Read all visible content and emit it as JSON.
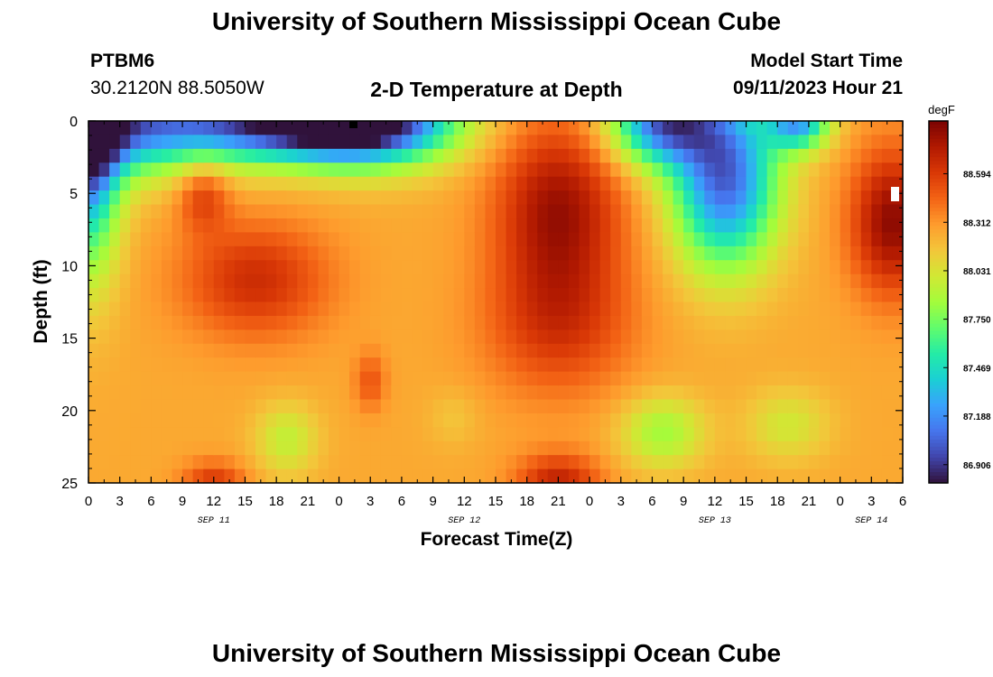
{
  "header": {
    "title_top": "University of Southern Mississippi Ocean Cube",
    "title_bottom": "University of Southern Mississippi Ocean Cube",
    "station": "PTBM6",
    "coords": "30.2120N  88.5050W",
    "model_start_label": "Model Start Time",
    "model_start_value": "09/11/2023 Hour 21"
  },
  "colors": {
    "colormap": [
      "#30123b",
      "#4145ab",
      "#4675ed",
      "#39a2fc",
      "#1bcfd4",
      "#24eca6",
      "#61fc6c",
      "#a4fc3b",
      "#d1e834",
      "#f3c63a",
      "#fe9b2d",
      "#f36315",
      "#d93806",
      "#b11901",
      "#7a0402"
    ]
  },
  "chart_data": {
    "type": "heatmap",
    "title": "2-D Temperature at Depth",
    "xlabel": "Forecast Time(Z)",
    "ylabel": "Depth (ft)",
    "colorbar_unit": "degF",
    "x_range_hours_from_sep11_00z": [
      0,
      78
    ],
    "x_tick_labels": [
      "0",
      "3",
      "6",
      "9",
      "12",
      "15",
      "18",
      "21",
      "0",
      "3",
      "6",
      "9",
      "12",
      "15",
      "18",
      "21",
      "0",
      "3",
      "6",
      "9",
      "12",
      "15",
      "18",
      "21",
      "0",
      "3",
      "6"
    ],
    "x_date_labels": [
      {
        "label": "SEP 11",
        "at_tick": "12"
      },
      {
        "label": "SEP 12",
        "at_tick": "12"
      },
      {
        "label": "SEP 13",
        "at_tick": "12"
      },
      {
        "label": "SEP 14",
        "at_tick": "3"
      }
    ],
    "y_tick_labels": [
      "0",
      "5",
      "10",
      "15",
      "20",
      "25"
    ],
    "y_range": [
      0,
      25
    ],
    "y_inverted": true,
    "colorbar_tick_labels": [
      "88.594",
      "88.312",
      "88.031",
      "87.750",
      "87.469",
      "87.188",
      "86.906"
    ],
    "colorbar_range": [
      86.8,
      88.9
    ],
    "grid": false,
    "temperature_features": [
      {
        "kind": "cool",
        "t": 0,
        "d": 0,
        "value": 86.95,
        "st": 14,
        "sd": 3.5
      },
      {
        "kind": "cool",
        "t": 20,
        "d": 0,
        "value": 87.1,
        "st": 10,
        "sd": 2.5
      },
      {
        "kind": "cool",
        "t": 27,
        "d": 0,
        "value": 87.05,
        "st": 8,
        "sd": 3
      },
      {
        "kind": "cool",
        "t": 0,
        "d": 2,
        "value": 87.15,
        "st": 3,
        "sd": 8
      },
      {
        "kind": "warm",
        "t": 16,
        "d": 11,
        "value": 88.65,
        "st": 7,
        "sd": 4
      },
      {
        "kind": "warm",
        "t": 11,
        "d": 5,
        "value": 88.6,
        "st": 2.5,
        "sd": 2.5
      },
      {
        "kind": "warm",
        "t": 45,
        "d": 6,
        "value": 88.8,
        "st": 6,
        "sd": 6
      },
      {
        "kind": "warm",
        "t": 45,
        "d": 14,
        "value": 88.6,
        "st": 7,
        "sd": 5
      },
      {
        "kind": "cool",
        "t": 61,
        "d": 4,
        "value": 87.05,
        "st": 5,
        "sd": 6
      },
      {
        "kind": "cool",
        "t": 55,
        "d": 0,
        "value": 87.1,
        "st": 5,
        "sd": 3
      },
      {
        "kind": "cool",
        "t": 68,
        "d": 0,
        "value": 87.3,
        "st": 3,
        "sd": 2
      },
      {
        "kind": "warm",
        "t": 77,
        "d": 7,
        "value": 88.85,
        "st": 4,
        "sd": 5
      },
      {
        "kind": "warm",
        "t": 27,
        "d": 18,
        "value": 88.5,
        "st": 1.5,
        "sd": 2
      },
      {
        "kind": "cool",
        "t": 19,
        "d": 22,
        "value": 87.95,
        "st": 3,
        "sd": 2.5
      },
      {
        "kind": "cool",
        "t": 35,
        "d": 20.5,
        "value": 88.15,
        "st": 2.5,
        "sd": 2
      },
      {
        "kind": "cool",
        "t": 55,
        "d": 21.5,
        "value": 87.85,
        "st": 4,
        "sd": 2.5
      },
      {
        "kind": "cool",
        "t": 67,
        "d": 21,
        "value": 88.0,
        "st": 4,
        "sd": 2.5
      },
      {
        "kind": "warm",
        "t": 12,
        "d": 25,
        "value": 88.6,
        "st": 3,
        "sd": 1.5
      },
      {
        "kind": "warm",
        "t": 45,
        "d": 25,
        "value": 88.7,
        "st": 4,
        "sd": 2
      }
    ]
  }
}
